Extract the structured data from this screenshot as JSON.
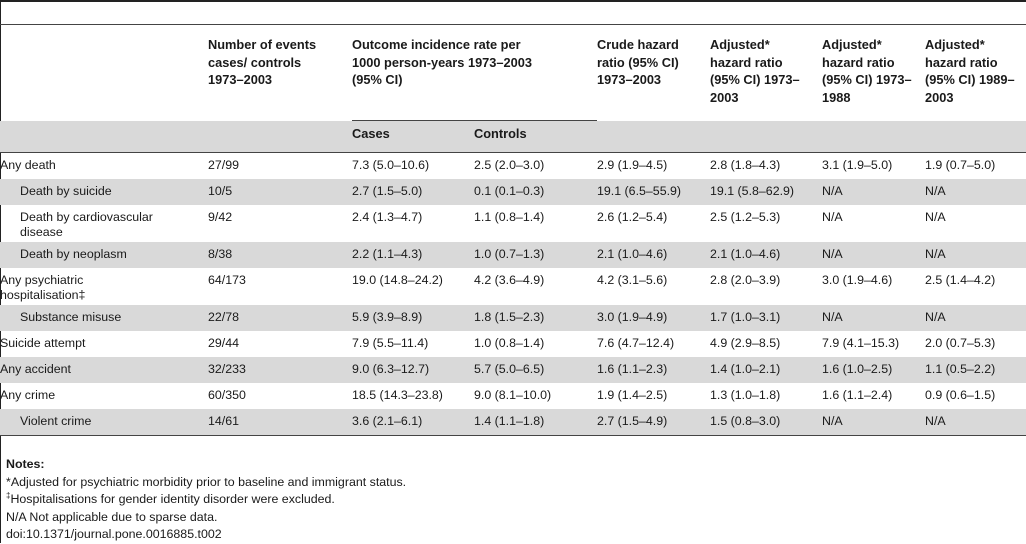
{
  "headers": {
    "number_of_events": "Number of events cases/ controls 1973–2003",
    "incidence": "Outcome incidence rate per 1000 person-years 1973–2003 (95% CI)",
    "crude_hr": "Crude hazard ratio (95% CI) 1973–2003",
    "adj_hr_all": "Adjusted* hazard ratio (95% CI) 1973–2003",
    "adj_hr_early": "Adjusted* hazard ratio (95% CI) 1973–1988",
    "adj_hr_late": "Adjusted* hazard ratio (95% CI) 1989–2003",
    "sub_cases": "Cases",
    "sub_controls": "Controls"
  },
  "rows": [
    {
      "label": "Any death",
      "events": "27/99",
      "cases": "7.3 (5.0–10.6)",
      "controls": "2.5 (2.0–3.0)",
      "crude": "2.9 (1.9–4.5)",
      "adj_all": "2.8 (1.8–4.3)",
      "adj_early": "3.1 (1.9–5.0)",
      "adj_late": "1.9 (0.7–5.0)"
    },
    {
      "label": "Death by suicide",
      "events": "10/5",
      "cases": "2.7 (1.5–5.0)",
      "controls": "0.1 (0.1–0.3)",
      "crude": "19.1 (6.5–55.9)",
      "adj_all": "19.1 (5.8–62.9)",
      "adj_early": "N/A",
      "adj_late": "N/A"
    },
    {
      "label": "Death by cardiovascular disease",
      "events": "9/42",
      "cases": "2.4 (1.3–4.7)",
      "controls": "1.1 (0.8–1.4)",
      "crude": "2.6 (1.2–5.4)",
      "adj_all": "2.5 (1.2–5.3)",
      "adj_early": "N/A",
      "adj_late": "N/A"
    },
    {
      "label": "Death by neoplasm",
      "events": "8/38",
      "cases": "2.2 (1.1–4.3)",
      "controls": "1.0 (0.7–1.3)",
      "crude": "2.1 (1.0–4.6)",
      "adj_all": "2.1 (1.0–4.6)",
      "adj_early": "N/A",
      "adj_late": "N/A"
    },
    {
      "label": "Any psychiatric hospitalisation‡",
      "events": "64/173",
      "cases": "19.0 (14.8–24.2)",
      "controls": "4.2 (3.6–4.9)",
      "crude": "4.2 (3.1–5.6)",
      "adj_all": "2.8 (2.0–3.9)",
      "adj_early": "3.0 (1.9–4.6)",
      "adj_late": "2.5 (1.4–4.2)"
    },
    {
      "label": "Substance misuse",
      "events": "22/78",
      "cases": "5.9 (3.9–8.9)",
      "controls": "1.8 (1.5–2.3)",
      "crude": "3.0 (1.9–4.9)",
      "adj_all": "1.7 (1.0–3.1)",
      "adj_early": "N/A",
      "adj_late": "N/A"
    },
    {
      "label": "Suicide attempt",
      "events": "29/44",
      "cases": "7.9 (5.5–11.4)",
      "controls": "1.0 (0.8–1.4)",
      "crude": "7.6 (4.7–12.4)",
      "adj_all": "4.9 (2.9–8.5)",
      "adj_early": "7.9 (4.1–15.3)",
      "adj_late": "2.0 (0.7–5.3)"
    },
    {
      "label": "Any accident",
      "events": "32/233",
      "cases": "9.0 (6.3–12.7)",
      "controls": "5.7 (5.0–6.5)",
      "crude": "1.6 (1.1–2.3)",
      "adj_all": "1.4 (1.0–2.1)",
      "adj_early": "1.6 (1.0–2.5)",
      "adj_late": "1.1 (0.5–2.2)"
    },
    {
      "label": "Any crime",
      "events": "60/350",
      "cases": "18.5 (14.3–23.8)",
      "controls": "9.0 (8.1–10.0)",
      "crude": "1.9 (1.4–2.5)",
      "adj_all": "1.3 (1.0–1.8)",
      "adj_early": "1.6 (1.1–2.4)",
      "adj_late": "0.9 (0.6–1.5)"
    },
    {
      "label": "Violent crime",
      "events": "14/61",
      "cases": "3.6 (2.1–6.1)",
      "controls": "1.4 (1.1–1.8)",
      "crude": "2.7 (1.5–4.9)",
      "adj_all": "1.5 (0.8–3.0)",
      "adj_early": "N/A",
      "adj_late": "N/A"
    }
  ],
  "notes": {
    "title": "Notes:",
    "note1": "*Adjusted for psychiatric morbidity prior to baseline and immigrant status.",
    "note2_mark": "‡",
    "note2": "Hospitalisations for gender identity disorder were excluded.",
    "note3": "N/A Not applicable due to sparse data.",
    "doi": "doi:10.1371/journal.pone.0016885.t002"
  }
}
